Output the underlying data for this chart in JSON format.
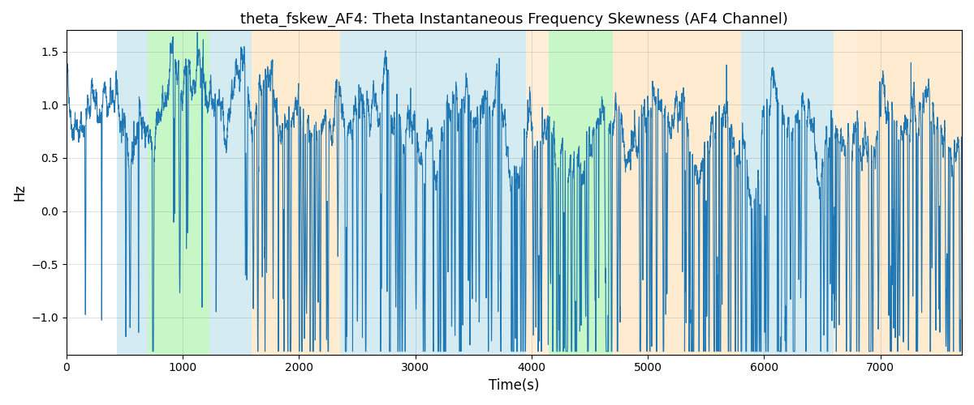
{
  "title": "theta_fskew_AF4: Theta Instantaneous Frequency Skewness (AF4 Channel)",
  "xlabel": "Time(s)",
  "ylabel": "Hz",
  "xlim": [
    0,
    7700
  ],
  "ylim": [
    -1.35,
    1.7
  ],
  "line_color": "#1f77b4",
  "line_width": 0.8,
  "background_color": "#ffffff",
  "figsize": [
    12,
    5
  ],
  "dpi": 100,
  "colored_bands": [
    {
      "xmin": 430,
      "xmax": 700,
      "color": "#add8e6",
      "alpha": 0.5
    },
    {
      "xmin": 700,
      "xmax": 1230,
      "color": "#90ee90",
      "alpha": 0.5
    },
    {
      "xmin": 1230,
      "xmax": 1590,
      "color": "#add8e6",
      "alpha": 0.5
    },
    {
      "xmin": 1590,
      "xmax": 2350,
      "color": "#ffd9a0",
      "alpha": 0.5
    },
    {
      "xmin": 2350,
      "xmax": 3950,
      "color": "#add8e6",
      "alpha": 0.5
    },
    {
      "xmin": 3950,
      "xmax": 4150,
      "color": "#ffd9a0",
      "alpha": 0.4
    },
    {
      "xmin": 4150,
      "xmax": 4700,
      "color": "#90ee90",
      "alpha": 0.5
    },
    {
      "xmin": 4700,
      "xmax": 5050,
      "color": "#ffd9a0",
      "alpha": 0.5
    },
    {
      "xmin": 5050,
      "xmax": 5800,
      "color": "#ffd9a0",
      "alpha": 0.5
    },
    {
      "xmin": 5800,
      "xmax": 6600,
      "color": "#add8e6",
      "alpha": 0.5
    },
    {
      "xmin": 6600,
      "xmax": 6800,
      "color": "#ffd9a0",
      "alpha": 0.4
    },
    {
      "xmin": 6800,
      "xmax": 7700,
      "color": "#ffd9a0",
      "alpha": 0.5
    }
  ],
  "yticks": [
    -1.0,
    -0.5,
    0.0,
    0.5,
    1.0,
    1.5
  ],
  "seed": 123
}
